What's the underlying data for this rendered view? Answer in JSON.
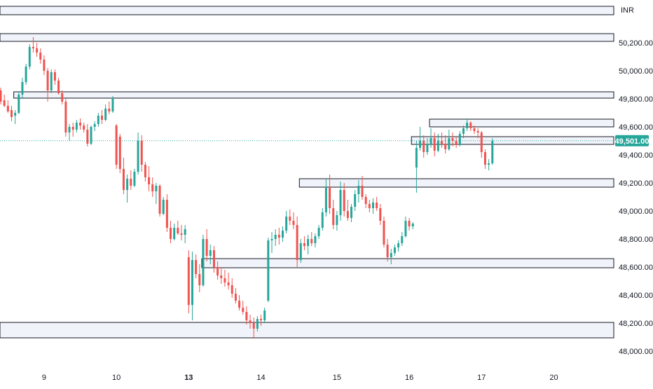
{
  "currency_label": "INR",
  "last_price_label": "49,501.00",
  "colors": {
    "up": "#26a69a",
    "down": "#ef5350",
    "zone_fill": "#f0f3fa",
    "zone_stroke": "#131722",
    "last_price": "#26a69a",
    "axis_text": "#131722",
    "background": "#ffffff"
  },
  "chart_data": {
    "type": "candlestick",
    "y_axis": {
      "ticks": [
        48000,
        48200,
        48400,
        48600,
        48800,
        49000,
        49200,
        49400,
        49600,
        49800,
        50000,
        50200
      ],
      "tick_labels": [
        "48,000.00",
        "48,200.00",
        "48,400.00",
        "48,600.00",
        "48,800.00",
        "49,000.00",
        "49,200.00",
        "49,400.00",
        "49,600.00",
        "49,800.00",
        "50,000.00",
        "50,200.00"
      ],
      "range": [
        47950,
        50500
      ]
    },
    "x_axis": {
      "labels": [
        {
          "label": "9",
          "idx": 12,
          "bold": false
        },
        {
          "label": "10",
          "idx": 32,
          "bold": false
        },
        {
          "label": "13",
          "idx": 52,
          "bold": true
        },
        {
          "label": "14",
          "idx": 72,
          "bold": false
        },
        {
          "label": "15",
          "idx": 93,
          "bold": false
        },
        {
          "label": "16",
          "idx": 113,
          "bold": false
        },
        {
          "label": "17",
          "idx": 133,
          "bold": false
        },
        {
          "label": "20",
          "idx": 153,
          "bold": false
        }
      ]
    },
    "last_price": 49501,
    "zones": [
      {
        "from_idx": 0,
        "low": 50400,
        "high": 50460
      },
      {
        "from_idx": 0,
        "low": 50210,
        "high": 50265
      },
      {
        "from_idx": 4,
        "low": 49805,
        "high": 49850
      },
      {
        "from_idx": 119,
        "low": 49600,
        "high": 49655
      },
      {
        "from_idx": 114,
        "low": 49475,
        "high": 49530
      },
      {
        "from_idx": 83,
        "low": 49170,
        "high": 49230
      },
      {
        "from_idx": 56,
        "low": 48595,
        "high": 48660
      },
      {
        "from_idx": 0,
        "low": 48095,
        "high": 48205
      }
    ],
    "candles": [
      [
        49860,
        49880,
        49760,
        49780
      ],
      [
        49790,
        49830,
        49740,
        49750
      ],
      [
        49750,
        49790,
        49700,
        49710
      ],
      [
        49720,
        49750,
        49640,
        49670
      ],
      [
        49680,
        49720,
        49620,
        49700
      ],
      [
        49700,
        49850,
        49690,
        49830
      ],
      [
        49830,
        49950,
        49800,
        49920
      ],
      [
        49920,
        50050,
        49900,
        50030
      ],
      [
        50030,
        50190,
        50010,
        50170
      ],
      [
        50170,
        50240,
        50130,
        50160
      ],
      [
        50160,
        50200,
        50100,
        50130
      ],
      [
        50130,
        50160,
        50050,
        50080
      ],
      [
        50080,
        50110,
        49970,
        50000
      ],
      [
        50000,
        50020,
        49780,
        49860
      ],
      [
        49860,
        50010,
        49840,
        49990
      ],
      [
        49990,
        50010,
        49900,
        49930
      ],
      [
        49930,
        49950,
        49830,
        49840
      ],
      [
        49840,
        49860,
        49760,
        49780
      ],
      [
        49780,
        49800,
        49530,
        49560
      ],
      [
        49560,
        49620,
        49500,
        49600
      ],
      [
        49600,
        49630,
        49530,
        49580
      ],
      [
        49580,
        49650,
        49560,
        49630
      ],
      [
        49630,
        49660,
        49580,
        49610
      ],
      [
        49610,
        49630,
        49560,
        49580
      ],
      [
        49580,
        49620,
        49460,
        49480
      ],
      [
        49480,
        49610,
        49470,
        49600
      ],
      [
        49600,
        49640,
        49570,
        49620
      ],
      [
        49620,
        49700,
        49600,
        49680
      ],
      [
        49680,
        49720,
        49620,
        49650
      ],
      [
        49650,
        49760,
        49640,
        49730
      ],
      [
        49730,
        49780,
        49690,
        49710
      ],
      [
        49710,
        49820,
        49700,
        49800
      ],
      [
        49610,
        49620,
        49300,
        49330
      ],
      [
        49530,
        49550,
        49270,
        49300
      ],
      [
        49300,
        49380,
        49120,
        49150
      ],
      [
        49150,
        49260,
        49060,
        49230
      ],
      [
        49230,
        49290,
        49150,
        49180
      ],
      [
        49180,
        49300,
        49170,
        49280
      ],
      [
        49280,
        49560,
        49260,
        49500
      ],
      [
        49500,
        49540,
        49280,
        49330
      ],
      [
        49330,
        49350,
        49210,
        49240
      ],
      [
        49240,
        49320,
        49140,
        49190
      ],
      [
        49190,
        49240,
        49100,
        49140
      ],
      [
        49140,
        49200,
        49050,
        49180
      ],
      [
        49180,
        49190,
        48960,
        48980
      ],
      [
        48980,
        49100,
        48970,
        49080
      ],
      [
        49080,
        49120,
        48850,
        48880
      ],
      [
        48880,
        48930,
        48770,
        48800
      ],
      [
        48800,
        48910,
        48790,
        48880
      ],
      [
        48880,
        48930,
        48830,
        48840
      ],
      [
        48840,
        48900,
        48790,
        48830
      ],
      [
        48830,
        48900,
        48770,
        48870
      ],
      [
        48670,
        48720,
        48270,
        48330
      ],
      [
        48330,
        48710,
        48220,
        48650
      ],
      [
        48650,
        48690,
        48520,
        48550
      ],
      [
        48550,
        48620,
        48420,
        48470
      ],
      [
        48470,
        48830,
        48460,
        48800
      ],
      [
        48800,
        48870,
        48640,
        48680
      ],
      [
        48680,
        48760,
        48620,
        48720
      ],
      [
        48720,
        48750,
        48560,
        48600
      ],
      [
        48600,
        48640,
        48510,
        48540
      ],
      [
        48540,
        48600,
        48480,
        48520
      ],
      [
        48520,
        48580,
        48460,
        48490
      ],
      [
        48490,
        48560,
        48440,
        48470
      ],
      [
        48470,
        48520,
        48380,
        48410
      ],
      [
        48410,
        48450,
        48340,
        48360
      ],
      [
        48360,
        48400,
        48290,
        48310
      ],
      [
        48310,
        48360,
        48260,
        48280
      ],
      [
        48280,
        48320,
        48190,
        48220
      ],
      [
        48220,
        48260,
        48160,
        48200
      ],
      [
        48200,
        48240,
        48090,
        48160
      ],
      [
        48160,
        48250,
        48140,
        48230
      ],
      [
        48230,
        48260,
        48180,
        48220
      ],
      [
        48220,
        48310,
        48200,
        48290
      ],
      [
        48360,
        48810,
        48350,
        48790
      ],
      [
        48790,
        48850,
        48700,
        48800
      ],
      [
        48800,
        48870,
        48750,
        48830
      ],
      [
        48830,
        48880,
        48760,
        48810
      ],
      [
        48810,
        48890,
        48780,
        48860
      ],
      [
        48860,
        49000,
        48840,
        48960
      ],
      [
        48960,
        49010,
        48900,
        48930
      ],
      [
        48930,
        48990,
        48870,
        48900
      ],
      [
        48900,
        48960,
        48600,
        48650
      ],
      [
        48650,
        48800,
        48630,
        48770
      ],
      [
        48770,
        48820,
        48720,
        48750
      ],
      [
        48750,
        48830,
        48690,
        48800
      ],
      [
        48800,
        48850,
        48750,
        48770
      ],
      [
        48770,
        48840,
        48740,
        48820
      ],
      [
        48820,
        48900,
        48800,
        48880
      ],
      [
        48880,
        49020,
        48860,
        48990
      ],
      [
        48990,
        49230,
        48960,
        49170
      ],
      [
        49170,
        49260,
        48980,
        49020
      ],
      [
        49020,
        49080,
        48870,
        48900
      ],
      [
        48900,
        49000,
        48860,
        48970
      ],
      [
        48970,
        49210,
        48930,
        49150
      ],
      [
        49150,
        49200,
        48960,
        49000
      ],
      [
        49000,
        49080,
        48930,
        48950
      ],
      [
        48950,
        49050,
        48920,
        49030
      ],
      [
        49030,
        49150,
        49000,
        49120
      ],
      [
        49120,
        49220,
        49060,
        49180
      ],
      [
        49180,
        49250,
        49080,
        49100
      ],
      [
        49100,
        49120,
        49020,
        49050
      ],
      [
        49050,
        49080,
        48990,
        49020
      ],
      [
        49020,
        49090,
        48980,
        49060
      ],
      [
        49060,
        49100,
        49000,
        49020
      ],
      [
        49020,
        49050,
        48900,
        48930
      ],
      [
        48930,
        48960,
        48740,
        48760
      ],
      [
        48760,
        48800,
        48640,
        48670
      ],
      [
        48670,
        48730,
        48620,
        48700
      ],
      [
        48700,
        48760,
        48680,
        48740
      ],
      [
        48740,
        48790,
        48710,
        48770
      ],
      [
        48770,
        48850,
        48750,
        48820
      ],
      [
        48820,
        48960,
        48810,
        48930
      ],
      [
        48930,
        48950,
        48860,
        48890
      ],
      [
        48890,
        48920,
        48870,
        48910
      ],
      [
        49310,
        49500,
        49130,
        49450
      ],
      [
        49450,
        49600,
        49430,
        49500
      ],
      [
        49500,
        49540,
        49380,
        49420
      ],
      [
        49420,
        49520,
        49400,
        49480
      ],
      [
        49480,
        49590,
        49450,
        49520
      ],
      [
        49520,
        49560,
        49390,
        49430
      ],
      [
        49430,
        49550,
        49420,
        49500
      ],
      [
        49500,
        49560,
        49450,
        49480
      ],
      [
        49480,
        49540,
        49410,
        49440
      ],
      [
        49440,
        49580,
        49430,
        49520
      ],
      [
        49520,
        49560,
        49460,
        49500
      ],
      [
        49500,
        49530,
        49450,
        49470
      ],
      [
        49470,
        49570,
        49460,
        49550
      ],
      [
        49550,
        49610,
        49520,
        49590
      ],
      [
        49590,
        49660,
        49570,
        49630
      ],
      [
        49630,
        49640,
        49570,
        49590
      ],
      [
        49590,
        49610,
        49550,
        49570
      ],
      [
        49570,
        49590,
        49520,
        49560
      ],
      [
        49560,
        49570,
        49380,
        49420
      ],
      [
        49420,
        49440,
        49300,
        49330
      ],
      [
        49330,
        49370,
        49290,
        49340
      ],
      [
        49340,
        49520,
        49330,
        49501
      ]
    ]
  }
}
